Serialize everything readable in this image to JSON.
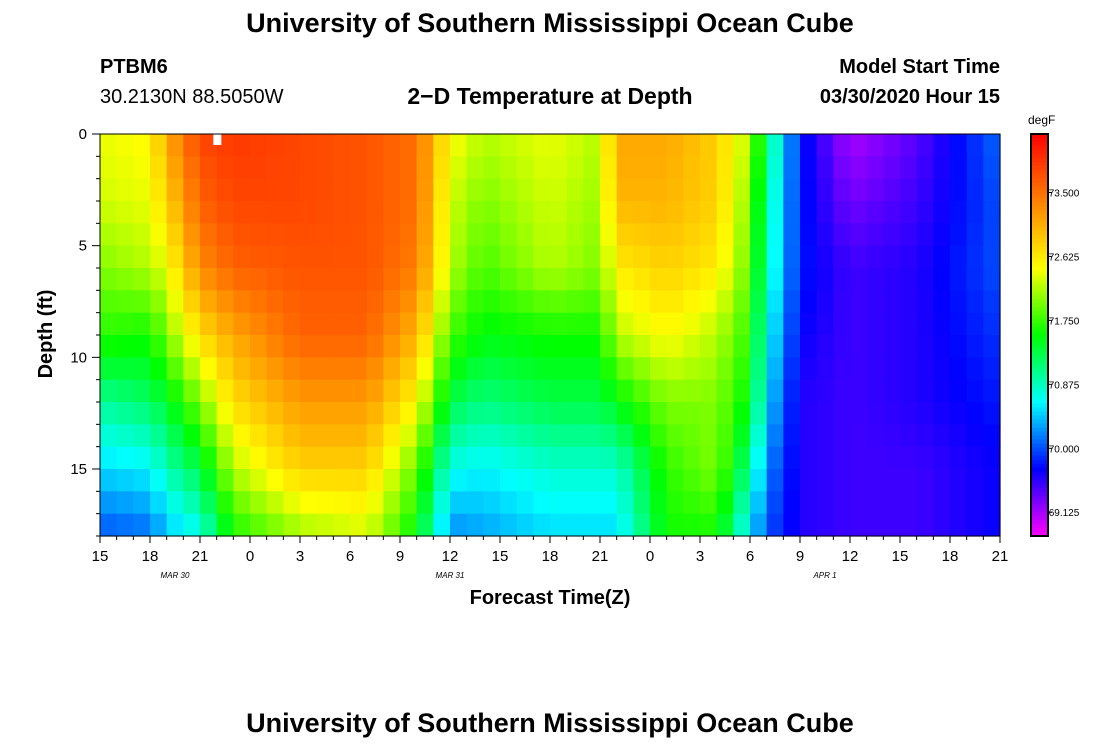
{
  "header": {
    "title": "University of Southern Mississippi Ocean Cube",
    "station": "PTBM6",
    "coords": "30.2130N 88.5050W",
    "plot_title": "2−D Temperature at Depth",
    "model_start_label": "Model Start Time",
    "model_start_time": "03/30/2020 Hour 15",
    "footer_title": "University of Southern Mississippi Ocean Cube"
  },
  "chart_data": {
    "type": "heatmap",
    "title": "2−D Temperature at Depth",
    "xlabel": "Forecast Time(Z)",
    "ylabel": "Depth (ft)",
    "x_hours_range": [
      0,
      54
    ],
    "y_depth_range_ft": [
      0,
      18
    ],
    "x_tick_labels": [
      "15",
      "18",
      "21",
      "0",
      "3",
      "6",
      "9",
      "12",
      "15",
      "18",
      "21",
      "0",
      "3",
      "6",
      "9",
      "12",
      "15",
      "18",
      "21"
    ],
    "y_tick_labels": [
      "0",
      "5",
      "10",
      "15"
    ],
    "y_tick_values": [
      0,
      5,
      10,
      15
    ],
    "date_labels": [
      {
        "text": "MAR  30",
        "hour": 4.5
      },
      {
        "text": "MAR  31",
        "hour": 21
      },
      {
        "text": "APR  1",
        "hour": 43.5
      }
    ],
    "colorbar": {
      "unit": "degF",
      "range": [
        68.8,
        74.3
      ],
      "tick_values": [
        73.5,
        72.625,
        71.75,
        70.875,
        70.0,
        69.125
      ],
      "tick_labels": [
        "73.500",
        "72.625",
        "71.750",
        "70.875",
        "70.000",
        "69.125"
      ]
    },
    "grid_resolution": {
      "time_steps": 54,
      "depth_levels": 18
    },
    "profile_keyframes": {
      "depth_nodes_ft": [
        0,
        3,
        6,
        9,
        12,
        15,
        18
      ],
      "frames": [
        {
          "hour": 0,
          "temps": [
            72.4,
            72.3,
            72.0,
            71.7,
            71.0,
            70.5,
            70.0
          ]
        },
        {
          "hour": 3,
          "temps": [
            72.5,
            72.4,
            72.2,
            71.6,
            71.2,
            70.6,
            70.1
          ]
        },
        {
          "hour": 4,
          "temps": [
            73.1,
            72.8,
            72.4,
            72.0,
            71.4,
            70.9,
            70.4
          ]
        },
        {
          "hour": 6,
          "temps": [
            73.8,
            73.6,
            73.3,
            72.7,
            72.0,
            71.3,
            70.7
          ]
        },
        {
          "hour": 8,
          "temps": [
            73.9,
            73.8,
            73.6,
            73.1,
            72.7,
            72.2,
            71.6
          ]
        },
        {
          "hour": 12,
          "temps": [
            73.8,
            73.8,
            73.7,
            73.6,
            73.2,
            72.8,
            72.1
          ]
        },
        {
          "hour": 16,
          "temps": [
            73.7,
            73.7,
            73.7,
            73.6,
            73.2,
            72.8,
            72.3
          ]
        },
        {
          "hour": 19,
          "temps": [
            73.5,
            73.5,
            73.4,
            73.0,
            72.5,
            71.9,
            71.5
          ]
        },
        {
          "hour": 21,
          "temps": [
            72.5,
            72.3,
            72.2,
            71.8,
            71.3,
            70.7,
            70.2
          ]
        },
        {
          "hour": 23,
          "temps": [
            72.2,
            72.0,
            71.8,
            71.5,
            71.1,
            70.6,
            70.3
          ]
        },
        {
          "hour": 27,
          "temps": [
            72.4,
            72.3,
            72.2,
            71.6,
            71.3,
            70.8,
            70.5
          ]
        },
        {
          "hour": 30,
          "temps": [
            72.2,
            72.1,
            72.0,
            71.6,
            71.3,
            70.8,
            70.5
          ]
        },
        {
          "hour": 31,
          "temps": [
            73.1,
            73.0,
            72.6,
            72.2,
            71.5,
            70.8,
            70.5
          ]
        },
        {
          "hour": 34,
          "temps": [
            73.1,
            73.0,
            72.8,
            72.5,
            72.0,
            71.7,
            71.6
          ]
        },
        {
          "hour": 37,
          "temps": [
            72.8,
            72.8,
            72.6,
            72.2,
            72.0,
            72.0,
            71.6
          ]
        },
        {
          "hour": 39,
          "temps": [
            72.2,
            72.0,
            71.9,
            71.7,
            71.5,
            71.0,
            70.5
          ]
        },
        {
          "hour": 40,
          "temps": [
            71.2,
            71.0,
            70.9,
            70.7,
            70.5,
            70.2,
            70.0
          ]
        },
        {
          "hour": 42,
          "temps": [
            69.8,
            69.8,
            69.8,
            69.7,
            69.6,
            69.6,
            69.6
          ]
        },
        {
          "hour": 45,
          "temps": [
            69.1,
            69.3,
            69.5,
            69.5,
            69.5,
            69.5,
            69.5
          ]
        },
        {
          "hour": 49,
          "temps": [
            69.4,
            69.5,
            69.6,
            69.6,
            69.6,
            69.5,
            69.5
          ]
        },
        {
          "hour": 54,
          "temps": [
            70.1,
            70.0,
            70.0,
            69.9,
            69.8,
            69.7,
            69.7
          ]
        }
      ]
    }
  },
  "colors": {
    "scale": [
      "#ff00ff",
      "#0000ff",
      "#00ffff",
      "#00ff00",
      "#ffff00",
      "#ff8000",
      "#ff0000"
    ],
    "marker": "#ffffff"
  }
}
